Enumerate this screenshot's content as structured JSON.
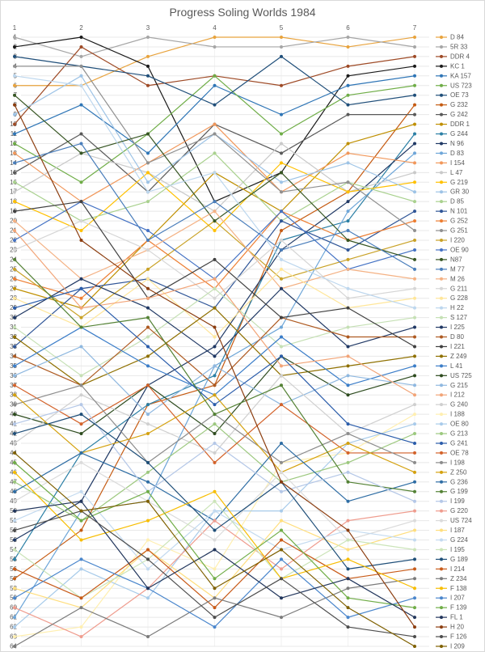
{
  "title": "Progress Soling Worlds 1984",
  "chart_data": {
    "type": "line",
    "subtype": "bump-rank-progress",
    "title": "Progress Soling Worlds 1984",
    "x": [
      1,
      2,
      3,
      4,
      5,
      6,
      7
    ],
    "x_tick_labels": [
      "1",
      "2",
      "3",
      "4",
      "5",
      "6",
      "7"
    ],
    "y_axis": {
      "min": 1,
      "max": 64,
      "direction": "down",
      "tick_step": 1
    },
    "grid": true,
    "legend_position": "right",
    "axis_text_color": "#595959",
    "grid_color": "#e8e8e8",
    "series": [
      {
        "label": "D 84",
        "color": "#E8A33D",
        "positions": [
          6,
          6,
          3,
          1,
          1,
          2,
          1
        ]
      },
      {
        "label": "5R 33",
        "color": "#A6A6A6",
        "positions": [
          1,
          3,
          1,
          2,
          2,
          1,
          2
        ]
      },
      {
        "label": "DDR 4",
        "color": "#9E4A26",
        "positions": [
          10,
          2,
          6,
          5,
          6,
          4,
          3
        ]
      },
      {
        "label": "KC 1",
        "color": "#1A1A1A",
        "positions": [
          2,
          1,
          4,
          18,
          15,
          5,
          4
        ]
      },
      {
        "label": "KA 157",
        "color": "#2E75B6",
        "positions": [
          11,
          8,
          13,
          6,
          9,
          6,
          5
        ]
      },
      {
        "label": "US 723",
        "color": "#6FAD47",
        "positions": [
          12,
          16,
          11,
          5,
          11,
          7,
          6
        ]
      },
      {
        "label": "OE 73",
        "color": "#1F4E79",
        "positions": [
          3,
          4,
          5,
          8,
          3,
          8,
          7
        ]
      },
      {
        "label": "G 232",
        "color": "#C55A11",
        "positions": [
          57,
          52,
          39,
          37,
          21,
          17,
          8
        ]
      },
      {
        "label": "G 242",
        "color": "#595959",
        "positions": [
          15,
          11,
          17,
          10,
          13,
          9,
          9
        ]
      },
      {
        "label": "DDR 1",
        "color": "#BF8F00",
        "positions": [
          27,
          29,
          22,
          15,
          19,
          12,
          10
        ]
      },
      {
        "label": "G 244",
        "color": "#2B7FA5",
        "positions": [
          55,
          44,
          39,
          36,
          22,
          20,
          11
        ]
      },
      {
        "label": "N 96",
        "color": "#1F3864",
        "positions": [
          53,
          49,
          37,
          33,
          23,
          18,
          12
        ]
      },
      {
        "label": "D 83",
        "color": "#6EA6D8",
        "positions": [
          61,
          50,
          49,
          35,
          31,
          19,
          13
        ]
      },
      {
        "label": "I 154",
        "color": "#F1975A",
        "positions": [
          13,
          18,
          14,
          10,
          17,
          13,
          14
        ]
      },
      {
        "label": "L 47",
        "color": "#C9C9C9",
        "positions": [
          17,
          13,
          15,
          19,
          12,
          17,
          15
        ]
      },
      {
        "label": "G 219",
        "color": "#FFC000",
        "positions": [
          18,
          21,
          15,
          21,
          14,
          17,
          16
        ]
      },
      {
        "label": "GR 30",
        "color": "#9DC3E6",
        "positions": [
          9,
          5,
          16,
          11,
          16,
          14,
          17
        ]
      },
      {
        "label": "D 85",
        "color": "#A9D18E",
        "positions": [
          16,
          20,
          18,
          13,
          20,
          16,
          18
        ]
      },
      {
        "label": "N 101",
        "color": "#2F5597",
        "positions": [
          33,
          27,
          26,
          29,
          20,
          23,
          19
        ]
      },
      {
        "label": "G 252",
        "color": "#ED7D31",
        "positions": [
          26,
          28,
          22,
          27,
          19,
          22,
          20
        ]
      },
      {
        "label": "G 251",
        "color": "#909090",
        "positions": [
          4,
          4,
          14,
          11,
          17,
          16,
          21
        ]
      },
      {
        "label": "I 220",
        "color": "#C9A227",
        "positions": [
          25,
          30,
          25,
          20,
          26,
          24,
          22
        ]
      },
      {
        "label": "OE 90",
        "color": "#4472C4",
        "positions": [
          22,
          18,
          21,
          26,
          19,
          25,
          23
        ]
      },
      {
        "label": "N87",
        "color": "#375623",
        "positions": [
          7,
          13,
          11,
          20,
          15,
          22,
          24
        ]
      },
      {
        "label": "M 77",
        "color": "#4A7EBB",
        "positions": [
          14,
          12,
          22,
          18,
          23,
          21,
          25
        ]
      },
      {
        "label": "M 26",
        "color": "#F4B183",
        "positions": [
          20,
          26,
          23,
          19,
          27,
          25,
          26
        ]
      },
      {
        "label": "G 211",
        "color": "#D6D6D6",
        "positions": [
          23,
          20,
          23,
          28,
          22,
          28,
          27
        ]
      },
      {
        "label": "G 228",
        "color": "#FFE699",
        "positions": [
          28,
          31,
          26,
          32,
          25,
          29,
          28
        ]
      },
      {
        "label": "H 22",
        "color": "#BDD7EE",
        "positions": [
          5,
          6,
          17,
          15,
          24,
          27,
          29
        ]
      },
      {
        "label": "S 127",
        "color": "#C5E0B4",
        "positions": [
          31,
          36,
          32,
          27,
          33,
          31,
          30
        ]
      },
      {
        "label": "I 225",
        "color": "#203864",
        "positions": [
          30,
          26,
          29,
          34,
          27,
          33,
          31
        ]
      },
      {
        "label": "D 80",
        "color": "#AE5A21",
        "positions": [
          34,
          37,
          31,
          37,
          30,
          32,
          32
        ]
      },
      {
        "label": "I 221",
        "color": "#404040",
        "positions": [
          19,
          18,
          28,
          24,
          30,
          29,
          33
        ]
      },
      {
        "label": "Z 249",
        "color": "#8F7000",
        "positions": [
          32,
          37,
          34,
          29,
          36,
          35,
          34
        ]
      },
      {
        "label": "L 41",
        "color": "#3B7DC8",
        "positions": [
          35,
          31,
          35,
          38,
          32,
          37,
          35
        ]
      },
      {
        "label": "US 725",
        "color": "#2D4B1E",
        "positions": [
          40,
          42,
          37,
          42,
          34,
          38,
          36
        ]
      },
      {
        "label": "G 215",
        "color": "#8FB8E0",
        "positions": [
          36,
          33,
          40,
          35,
          39,
          36,
          37
        ]
      },
      {
        "label": "I 212",
        "color": "#F2A477",
        "positions": [
          21,
          29,
          28,
          26,
          35,
          34,
          38
        ]
      },
      {
        "label": "G 240",
        "color": "#CFCFCF",
        "positions": [
          43,
          38,
          41,
          44,
          36,
          42,
          39
        ]
      },
      {
        "label": "I 188",
        "color": "#FFEFB0",
        "positions": [
          63,
          62,
          53,
          56,
          45,
          44,
          40
        ]
      },
      {
        "label": "OE 80",
        "color": "#A8CBEA",
        "positions": [
          62,
          56,
          59,
          50,
          50,
          43,
          41
        ]
      },
      {
        "label": "G 213",
        "color": "#9CC87E",
        "positions": [
          47,
          51,
          46,
          41,
          47,
          45,
          42
        ]
      },
      {
        "label": "G 241",
        "color": "#2A5CAA",
        "positions": [
          29,
          27,
          33,
          39,
          34,
          41,
          43
        ]
      },
      {
        "label": "OE 78",
        "color": "#D3622A",
        "positions": [
          37,
          41,
          37,
          45,
          39,
          44,
          44
        ]
      },
      {
        "label": "I 198",
        "color": "#8C8C8C",
        "positions": [
          39,
          37,
          45,
          40,
          45,
          42,
          45
        ]
      },
      {
        "label": "Z 250",
        "color": "#D4A10E",
        "positions": [
          38,
          44,
          42,
          38,
          46,
          43,
          46
        ]
      },
      {
        "label": "G 236",
        "color": "#2E6DA4",
        "positions": [
          48,
          44,
          47,
          51,
          43,
          49,
          47
        ]
      },
      {
        "label": "G 199",
        "color": "#548235",
        "positions": [
          24,
          31,
          30,
          40,
          37,
          47,
          48
        ]
      },
      {
        "label": "I 199",
        "color": "#B4C7E7",
        "positions": [
          41,
          39,
          48,
          43,
          48,
          46,
          49
        ]
      },
      {
        "label": "G 220",
        "color": "#EF9C8E",
        "positions": [
          60,
          63,
          58,
          51,
          56,
          51,
          50
        ]
      },
      {
        "label": "US 724",
        "color": "#DBDBDB",
        "positions": [
          49,
          45,
          49,
          53,
          46,
          53,
          51
        ]
      },
      {
        "label": "I 187",
        "color": "#FFDE7D",
        "positions": [
          58,
          60,
          54,
          59,
          51,
          54,
          52
        ]
      },
      {
        "label": "G 224",
        "color": "#C3DAF0",
        "positions": [
          51,
          48,
          56,
          50,
          54,
          52,
          53
        ]
      },
      {
        "label": "I 195",
        "color": "#CBE4B8",
        "positions": [
          54,
          59,
          55,
          49,
          57,
          53,
          54
        ]
      },
      {
        "label": "G 189",
        "color": "#1E4E78",
        "positions": [
          42,
          40,
          45,
          52,
          47,
          56,
          55
        ]
      },
      {
        "label": "I 214",
        "color": "#C85A18",
        "positions": [
          56,
          59,
          54,
          60,
          53,
          57,
          56
        ]
      },
      {
        "label": "Z 234",
        "color": "#7B7B7B",
        "positions": [
          64,
          60,
          63,
          59,
          61,
          58,
          57
        ]
      },
      {
        "label": "F 138",
        "color": "#F7BD00",
        "positions": [
          46,
          53,
          51,
          48,
          57,
          55,
          58
        ]
      },
      {
        "label": "I 207",
        "color": "#4A86CC",
        "positions": [
          59,
          55,
          58,
          62,
          55,
          61,
          59
        ]
      },
      {
        "label": "F 139",
        "color": "#70AD47",
        "positions": [
          45,
          51,
          48,
          57,
          52,
          59,
          60
        ]
      },
      {
        "label": "FL 1",
        "color": "#22365C",
        "positions": [
          50,
          49,
          58,
          54,
          59,
          57,
          61
        ]
      },
      {
        "label": "H 20",
        "color": "#8C3D0F",
        "positions": [
          8,
          22,
          27,
          31,
          47,
          52,
          62
        ]
      },
      {
        "label": "F 126",
        "color": "#4D4D4D",
        "positions": [
          52,
          50,
          55,
          61,
          57,
          62,
          63
        ]
      },
      {
        "label": "I 209",
        "color": "#7F6000",
        "positions": [
          44,
          50,
          49,
          58,
          54,
          60,
          64
        ]
      }
    ]
  },
  "colors": {
    "title_text": "#595959",
    "axis_text": "#595959",
    "grid_h": "#e8e8e8",
    "grid_v": "#f2f2f2",
    "frame_border": "#d9d9d9",
    "background": "#ffffff"
  }
}
